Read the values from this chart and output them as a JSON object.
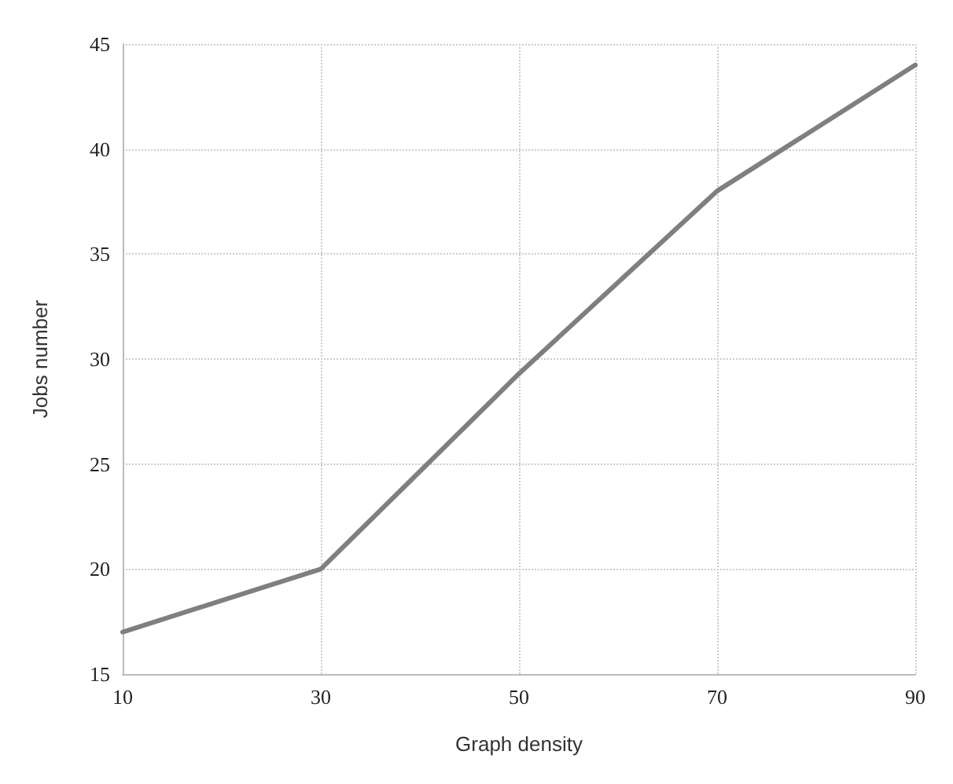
{
  "chart_data": {
    "type": "line",
    "xlabel": "Graph density",
    "ylabel": "Jobs number",
    "x": [
      10,
      30,
      50,
      70,
      90
    ],
    "series": [
      {
        "color": "#7f7f7f",
        "values": [
          17,
          20,
          29.3,
          38,
          44
        ]
      }
    ],
    "xlim": [
      10,
      90
    ],
    "xticks": [
      10,
      30,
      50,
      70,
      90
    ],
    "ylim": [
      15,
      45
    ],
    "yticks": [
      15,
      20,
      25,
      30,
      35,
      40,
      45
    ],
    "grid": true,
    "marker": "none",
    "line_style": "solid"
  }
}
